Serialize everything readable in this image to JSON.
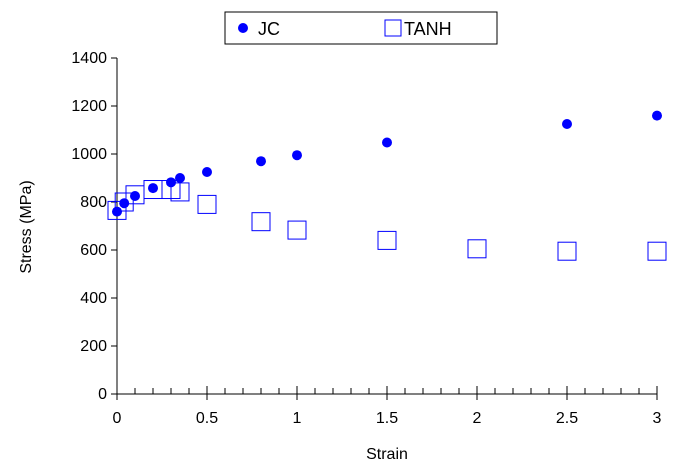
{
  "chart_data": {
    "type": "scatter",
    "xlabel": "Strain",
    "ylabel": "Stress (MPa)",
    "xlim": [
      0,
      3
    ],
    "ylim": [
      0,
      1400
    ],
    "x_ticks": [
      "0",
      "0.5",
      "1",
      "1.5",
      "2",
      "2.5",
      "3"
    ],
    "x_tick_values": [
      0,
      0.5,
      1,
      1.5,
      2,
      2.5,
      3
    ],
    "y_ticks": [
      "0",
      "200",
      "400",
      "600",
      "800",
      "1000",
      "1200",
      "1400"
    ],
    "y_tick_values": [
      0,
      200,
      400,
      600,
      800,
      1000,
      1200,
      1400
    ],
    "x_minor_step": 0.1,
    "grid": false,
    "legend_position": "top-center",
    "series": [
      {
        "name": "JC",
        "marker": "filled-circle",
        "color": "#0000ff",
        "points": [
          [
            0.0,
            760
          ],
          [
            0.04,
            795
          ],
          [
            0.1,
            825
          ],
          [
            0.2,
            858
          ],
          [
            0.3,
            882
          ],
          [
            0.35,
            900
          ],
          [
            0.5,
            925
          ],
          [
            0.8,
            970
          ],
          [
            1.0,
            995
          ],
          [
            1.5,
            1048
          ],
          [
            2.5,
            1125
          ],
          [
            3.0,
            1160
          ]
        ]
      },
      {
        "name": "TANH",
        "marker": "open-square",
        "color": "#0000ff",
        "points": [
          [
            0.0,
            765
          ],
          [
            0.04,
            800
          ],
          [
            0.1,
            830
          ],
          [
            0.2,
            852
          ],
          [
            0.3,
            852
          ],
          [
            0.35,
            842
          ],
          [
            0.5,
            790
          ],
          [
            0.8,
            718
          ],
          [
            1.0,
            683
          ],
          [
            1.5,
            640
          ],
          [
            2.0,
            605
          ],
          [
            2.5,
            595
          ],
          [
            3.0,
            595
          ]
        ]
      }
    ]
  }
}
